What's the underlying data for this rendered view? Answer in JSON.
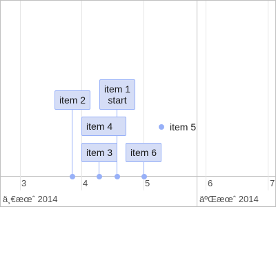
{
  "axis": {
    "minor_labels": [
      "3",
      "4",
      "5",
      "6",
      "7"
    ],
    "major_labels": [
      "ä¸€æœˆ 2014",
      "äºŒæœˆ 2014"
    ]
  },
  "items": {
    "item1": {
      "lines": [
        "item 1",
        "start"
      ]
    },
    "item2": {
      "lines": [
        "item 2"
      ]
    },
    "item3": {
      "lines": [
        "item 3"
      ]
    },
    "item4": {
      "lines": [
        "item 4"
      ]
    },
    "item5": {
      "label": "item 5"
    },
    "item6": {
      "lines": [
        "item 6"
      ]
    }
  }
}
